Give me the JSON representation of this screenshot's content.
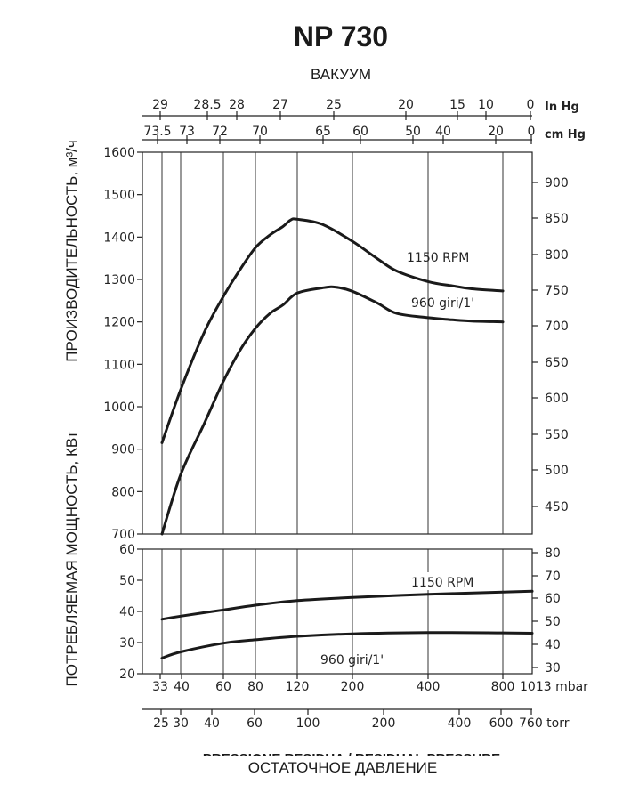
{
  "chart_data": {
    "type": "line",
    "title": "NP 730",
    "top_axis_label": "ВАКУУМ",
    "bottom_axis_label": "ОСТАТОЧНОЕ ДАВЛЕНИЕ",
    "bottom_axis_label_cut": "PRESSIONE RESIDUA / RESIDUAL PRESSURE",
    "ylabel_upper": "ПРОИЗВОДИТЕЛЬНОСТЬ, м³/ч",
    "ylabel_lower": "ПОТРЕБЛЯЕМАЯ МОЩНОСТЬ, КВт",
    "x_axes": {
      "in_hg": {
        "unit": "In Hg",
        "ticks": [
          "29",
          "28.5",
          "28",
          "27",
          "25",
          "20",
          "15",
          "10",
          "0"
        ]
      },
      "cm_hg": {
        "unit": "cm Hg",
        "ticks": [
          "73.5",
          "73",
          "72",
          "70",
          "65",
          "60",
          "50",
          "40",
          "20",
          "0"
        ]
      },
      "mbar": {
        "unit": "1013 mbar",
        "ticks": [
          "33",
          "40",
          "60",
          "80",
          "120",
          "200",
          "400",
          "800"
        ]
      },
      "torr": {
        "unit": "760 torr",
        "ticks": [
          "25",
          "30",
          "40",
          "60",
          "100",
          "200",
          "400",
          "600"
        ]
      }
    },
    "capacity_axis_left": {
      "ylim": [
        700,
        1600
      ],
      "ticks": [
        "700",
        "800",
        "900",
        "1000",
        "1100",
        "1200",
        "1300",
        "1400",
        "1500",
        "1600"
      ]
    },
    "capacity_axis_right": {
      "ticks": [
        "450",
        "500",
        "550",
        "600",
        "650",
        "700",
        "750",
        "800",
        "850",
        "900"
      ]
    },
    "power_axis_left": {
      "ylim": [
        20,
        60
      ],
      "ticks": [
        "20",
        "30",
        "40",
        "50",
        "60"
      ]
    },
    "power_axis_right": {
      "ticks": [
        "30",
        "40",
        "50",
        "60",
        "70",
        "80"
      ]
    },
    "capacity_series": [
      {
        "name": "1150 RPM",
        "x_mbar": [
          33,
          40,
          50,
          60,
          70,
          80,
          90,
          100,
          110,
          120,
          150,
          200,
          250,
          300,
          400,
          500,
          600,
          800
        ],
        "values": [
          915,
          1040,
          1175,
          1260,
          1325,
          1375,
          1405,
          1425,
          1440,
          1442,
          1430,
          1390,
          1350,
          1320,
          1295,
          1285,
          1278,
          1273
        ]
      },
      {
        "name": "960 giri/1'",
        "x_mbar": [
          33,
          40,
          50,
          60,
          70,
          80,
          90,
          100,
          120,
          150,
          170,
          200,
          250,
          300,
          400,
          500,
          600,
          800
        ],
        "values": [
          700,
          840,
          960,
          1060,
          1135,
          1185,
          1220,
          1240,
          1268,
          1280,
          1282,
          1272,
          1245,
          1220,
          1210,
          1205,
          1202,
          1200
        ]
      }
    ],
    "power_series": [
      {
        "name": "1150 RPM",
        "x_mbar": [
          33,
          40,
          60,
          80,
          120,
          200,
          400,
          800,
          1013
        ],
        "values": [
          37.5,
          38.5,
          40.5,
          42.0,
          43.5,
          44.5,
          45.5,
          46.2,
          46.5
        ]
      },
      {
        "name": "960 giri/1'",
        "x_mbar": [
          33,
          40,
          60,
          80,
          120,
          200,
          400,
          800,
          1013
        ],
        "values": [
          25.0,
          27.0,
          29.8,
          30.9,
          32.0,
          32.8,
          33.2,
          33.1,
          33.0
        ]
      }
    ]
  }
}
